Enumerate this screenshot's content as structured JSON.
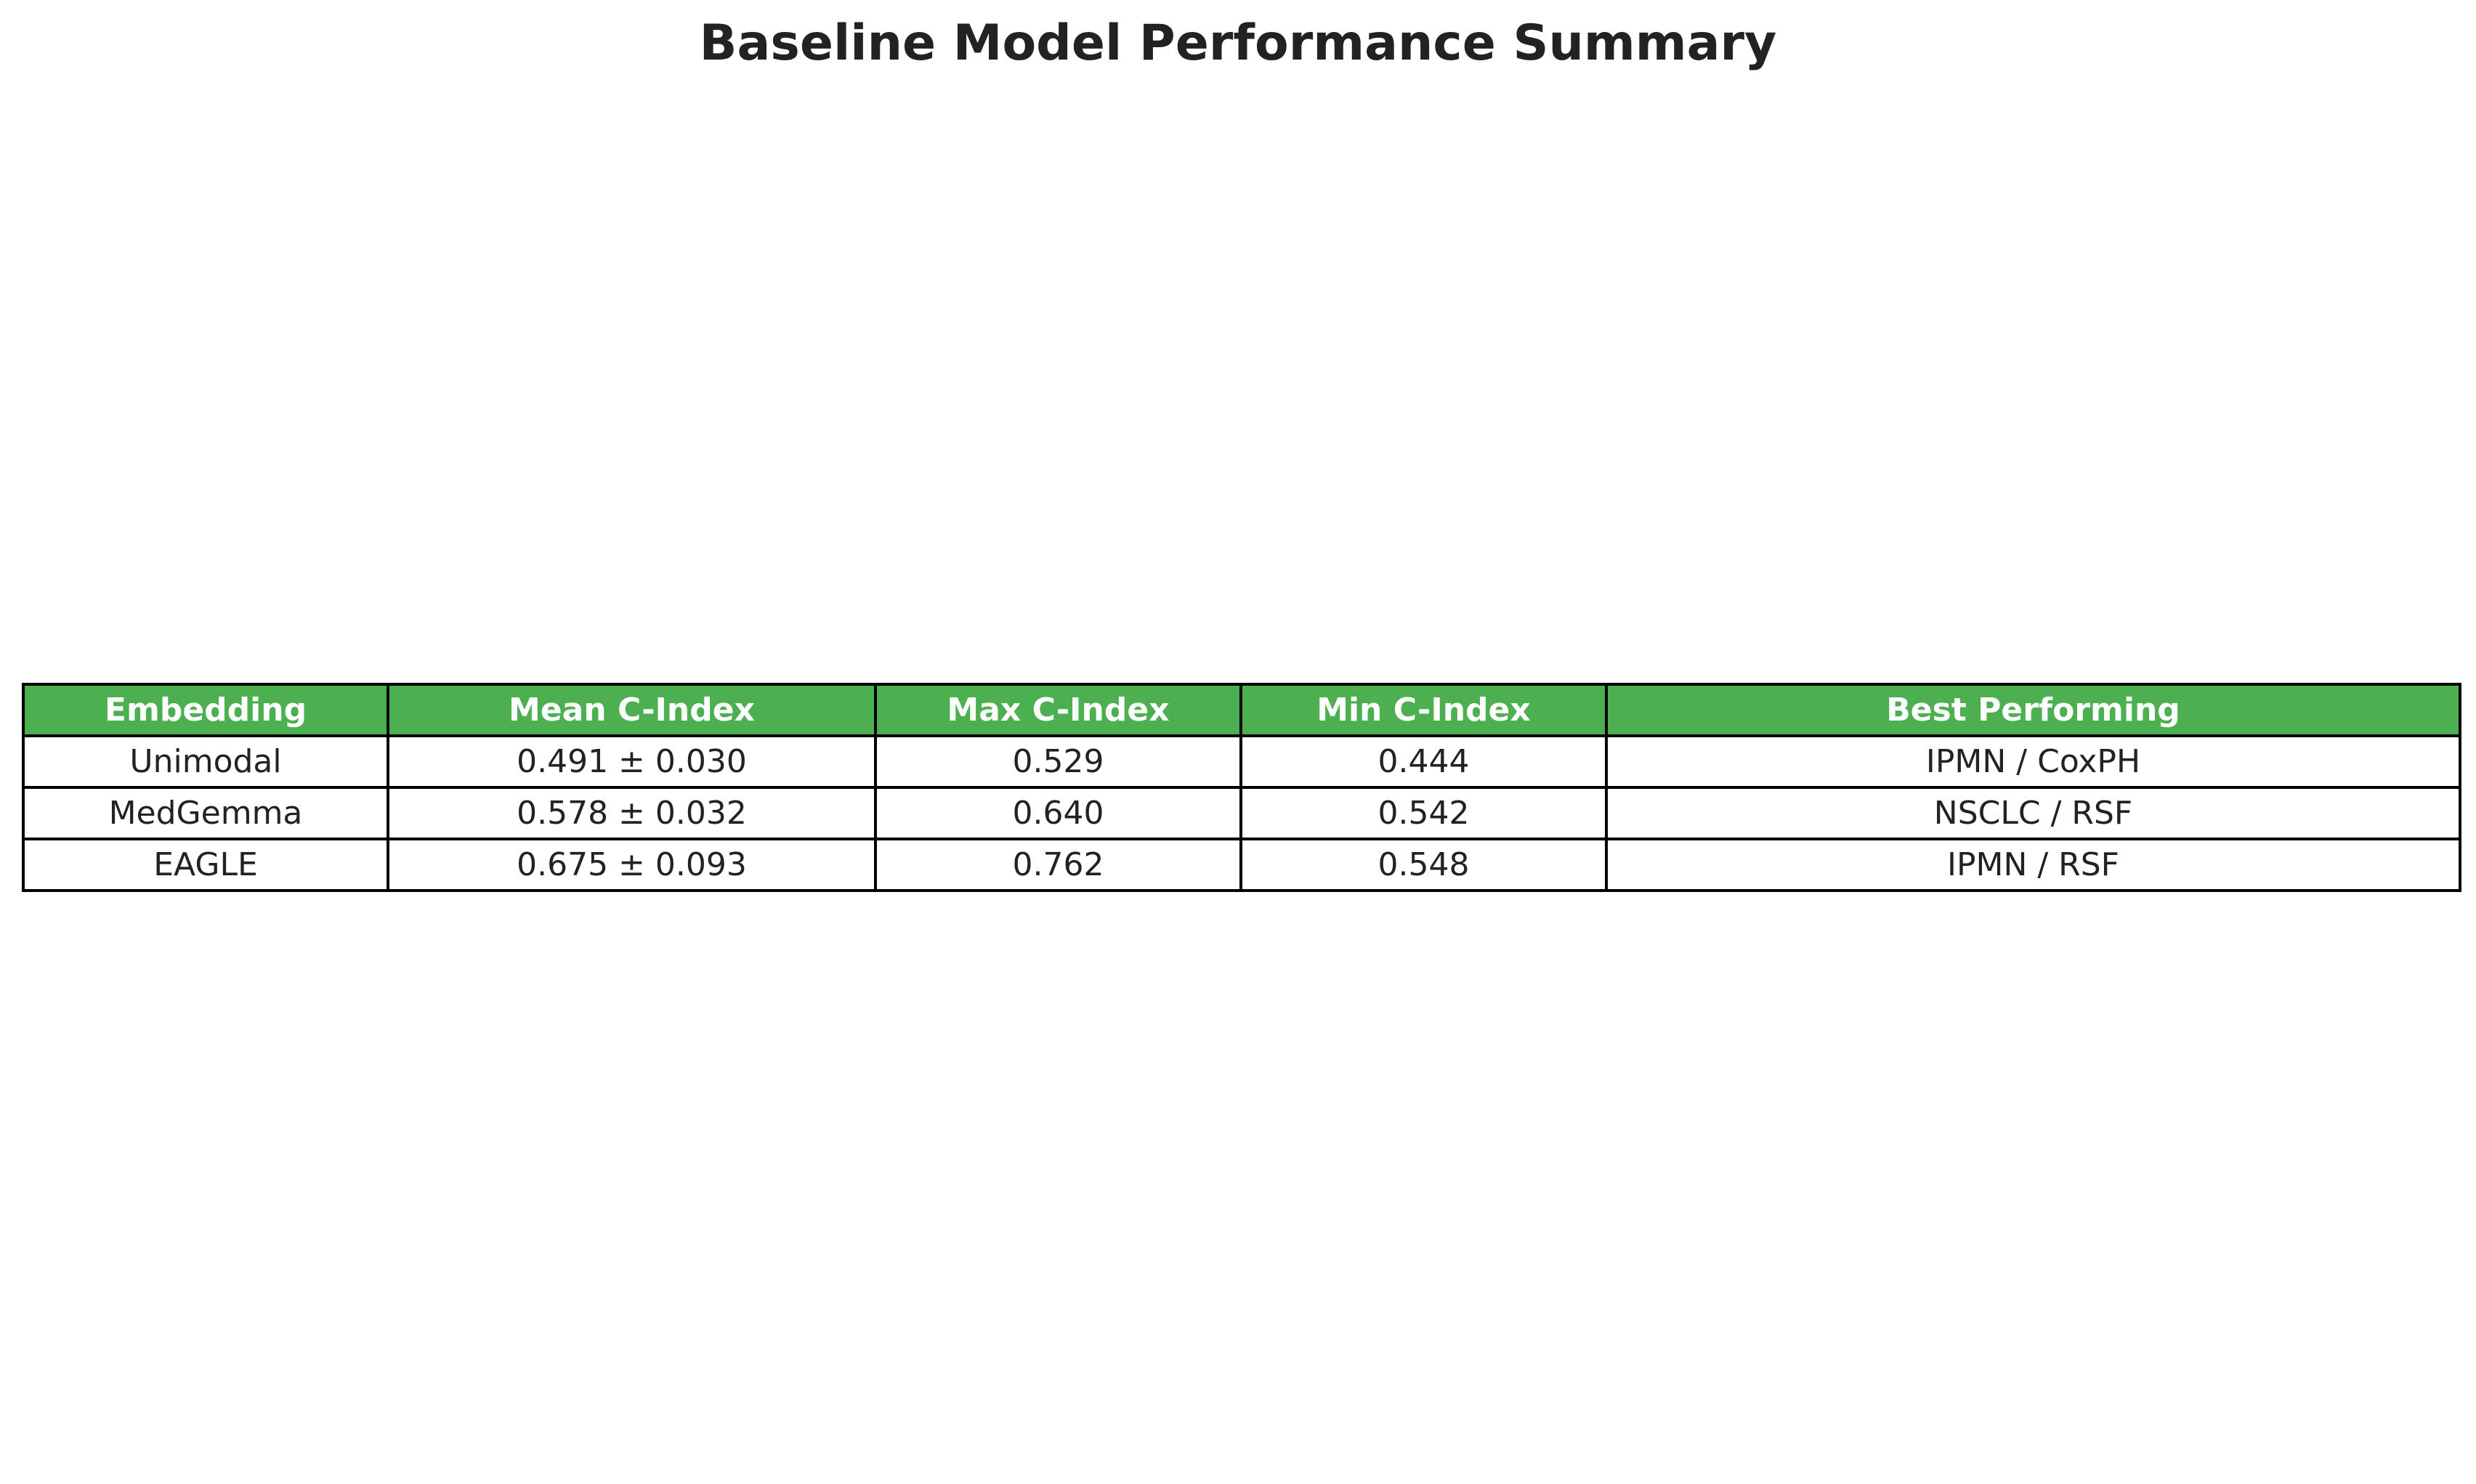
{
  "chart_data": {
    "type": "table",
    "title": "Baseline Model Performance Summary",
    "header_color": "#4caf50",
    "columns": [
      "Embedding",
      "Mean C-Index",
      "Max C-Index",
      "Min C-Index",
      "Best Performing"
    ],
    "rows": [
      [
        "Unimodal",
        "0.491 ± 0.030",
        "0.529",
        "0.444",
        "IPMN / CoxPH"
      ],
      [
        "MedGemma",
        "0.578 ± 0.032",
        "0.640",
        "0.542",
        "NSCLC / RSF"
      ],
      [
        "EAGLE",
        "0.675 ± 0.093",
        "0.762",
        "0.548",
        "IPMN / RSF"
      ]
    ]
  }
}
